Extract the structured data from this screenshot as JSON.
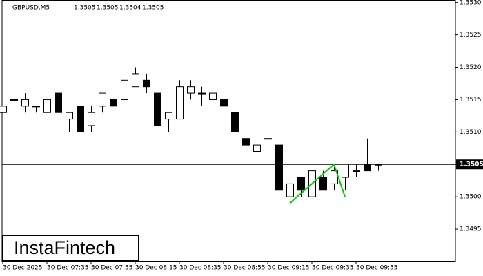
{
  "chart_data": {
    "type": "candlestick",
    "title": "GBPUSD,M5",
    "last_ohlc": [
      1.3505,
      1.3505,
      1.3504,
      1.3505
    ],
    "brand": "InstaFintech",
    "categories": [
      "30 Dec 2025",
      null,
      null,
      null,
      "30 Dec 07:35",
      null,
      null,
      null,
      "30 Dec 07:55",
      null,
      null,
      null,
      "30 Dec 08:15",
      null,
      null,
      null,
      "30 Dec 08:35",
      null,
      null,
      null,
      "30 Dec 08:55",
      null,
      null,
      null,
      "30 Dec 09:15",
      null,
      null,
      null,
      "30 Dec 09:35",
      null,
      null,
      null,
      "30 Dec 09:55",
      null,
      null
    ],
    "open": [
      1.3513,
      1.3515,
      1.3514,
      1.3514,
      1.3513,
      1.3516,
      1.3512,
      1.3514,
      1.3511,
      1.3514,
      1.3515,
      1.3515,
      1.3517,
      1.3518,
      1.3516,
      1.3512,
      1.3512,
      1.3516,
      1.3516,
      1.3515,
      1.3515,
      1.3513,
      1.3509,
      1.3507,
      1.3509,
      1.3508,
      1.35,
      1.3503,
      1.35,
      1.3503,
      1.3502,
      1.3503,
      1.3504,
      1.3505,
      1.3505
    ],
    "high": [
      1.3515,
      1.3516,
      1.3516,
      1.3514,
      1.3515,
      1.3516,
      1.3513,
      1.3514,
      1.3514,
      1.3516,
      1.3515,
      1.3518,
      1.352,
      1.3519,
      1.3516,
      1.3513,
      1.3518,
      1.3518,
      1.3517,
      1.3516,
      1.3516,
      1.3513,
      1.351,
      1.3508,
      1.3511,
      1.3508,
      1.3503,
      1.3503,
      1.3504,
      1.3504,
      1.3505,
      1.3505,
      1.3505,
      1.3509,
      1.3505
    ],
    "low": [
      1.3512,
      1.3514,
      1.3513,
      1.3513,
      1.3513,
      1.3513,
      1.351,
      1.351,
      1.351,
      1.3513,
      1.3514,
      1.3515,
      1.3517,
      1.3516,
      1.3511,
      1.351,
      1.3512,
      1.3515,
      1.3514,
      1.3514,
      1.3514,
      1.351,
      1.3508,
      1.3506,
      1.3509,
      1.3501,
      1.3499,
      1.35,
      1.35,
      1.3501,
      1.3501,
      1.3501,
      1.3503,
      1.3504,
      1.3504
    ],
    "close": [
      1.3514,
      1.3515,
      1.3515,
      1.3514,
      1.3515,
      1.3513,
      1.3513,
      1.351,
      1.3513,
      1.3516,
      1.3514,
      1.3518,
      1.3519,
      1.3517,
      1.3511,
      1.3513,
      1.3517,
      1.3517,
      1.3516,
      1.3516,
      1.3514,
      1.351,
      1.3508,
      1.3508,
      1.3509,
      1.3501,
      1.3502,
      1.3501,
      1.3504,
      1.3501,
      1.3504,
      1.3505,
      1.3504,
      1.3504,
      1.3505
    ],
    "pattern": {
      "color": "#00cc00",
      "x": [
        26,
        30,
        31
      ],
      "values": [
        1.3499,
        1.3505,
        1.35
      ]
    },
    "current_price": 1.3505,
    "ylim": [
      1.34901,
      1.35304
    ],
    "yticks": [
      1.3495,
      {
        "value": 1.35,
        "label": "1.3500"
      },
      1.3505,
      {
        "value": 1.351,
        "label": "1.3510"
      },
      1.3515,
      {
        "value": 1.352,
        "label": "1.3520"
      },
      1.3525,
      {
        "value": 1.353,
        "label": "1.3530"
      }
    ]
  }
}
